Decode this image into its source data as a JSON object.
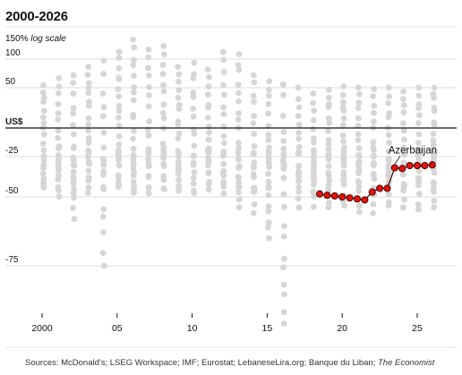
{
  "title": "2000-2026",
  "scale_note_value": "150%",
  "scale_note_label": "log scale",
  "footer_sources": "Sources: McDonald's; LSEG Workspace; IMF; Eurostat; LebaneseLira.org; Banque du Liban;",
  "footer_publisher": "The Economist",
  "colors": {
    "background_dots": "#d6d6d6",
    "highlight_fill": "#e3120b",
    "highlight_stroke": "#3a0000",
    "baseline": "#121212",
    "gridline": "#dddddd"
  },
  "chart_data": {
    "type": "scatter",
    "title": "2000-2026",
    "y_scale": "log (1 + pct/100)",
    "y_ticks": [
      "100",
      "50",
      "US$",
      "-25",
      "-50",
      "-75"
    ],
    "y_tick_values": [
      100,
      50,
      0,
      -25,
      -50,
      -75
    ],
    "x_ticks": [
      "2000",
      "05",
      "10",
      "15",
      "20",
      "25"
    ],
    "x_tick_values": [
      2000,
      2005,
      2010,
      2015,
      2020,
      2025
    ],
    "xlim": [
      1999,
      2027
    ],
    "ylim": [
      -92,
      150
    ],
    "background_dot_range_by_year": [
      {
        "x": 2000.1,
        "min": -45,
        "max": 55
      },
      {
        "x": 2001.1,
        "min": -50,
        "max": 65
      },
      {
        "x": 2002.1,
        "min": -60,
        "max": 70
      },
      {
        "x": 2003.1,
        "min": -48,
        "max": 85
      },
      {
        "x": 2004.1,
        "min": -75,
        "max": 100
      },
      {
        "x": 2005.1,
        "min": -45,
        "max": 115
      },
      {
        "x": 2006.1,
        "min": -48,
        "max": 145
      },
      {
        "x": 2007.1,
        "min": -50,
        "max": 120
      },
      {
        "x": 2008.1,
        "min": -46,
        "max": 135
      },
      {
        "x": 2009.1,
        "min": -48,
        "max": 85
      },
      {
        "x": 2010.1,
        "min": -48,
        "max": 95
      },
      {
        "x": 2011.1,
        "min": -47,
        "max": 80
      },
      {
        "x": 2012.1,
        "min": -50,
        "max": 115
      },
      {
        "x": 2013.1,
        "min": -55,
        "max": 110
      },
      {
        "x": 2014.1,
        "min": -58,
        "max": 70
      },
      {
        "x": 2015.1,
        "min": -67,
        "max": 60
      },
      {
        "x": 2016.1,
        "min": -86,
        "max": 55
      },
      {
        "x": 2017.1,
        "min": -55,
        "max": 50
      },
      {
        "x": 2018.1,
        "min": -55,
        "max": 45
      },
      {
        "x": 2019.1,
        "min": -55,
        "max": 48
      },
      {
        "x": 2020.1,
        "min": -55,
        "max": 52
      },
      {
        "x": 2021.1,
        "min": -57,
        "max": 50
      },
      {
        "x": 2022.1,
        "min": -58,
        "max": 48
      },
      {
        "x": 2023.1,
        "min": -55,
        "max": 50
      },
      {
        "x": 2024.1,
        "min": -55,
        "max": 48
      },
      {
        "x": 2025.1,
        "min": -56,
        "max": 50
      },
      {
        "x": 2026.1,
        "min": -55,
        "max": 52
      }
    ],
    "series": [
      {
        "name": "Azerbaijan",
        "x": [
          2018.5,
          2019.0,
          2019.5,
          2020.0,
          2020.5,
          2021.0,
          2021.5,
          2022.0,
          2022.5,
          2023.0,
          2023.5,
          2024.0,
          2024.5,
          2025.0,
          2025.5,
          2026.0
        ],
        "y": [
          -48.5,
          -49.2,
          -49.5,
          -50.0,
          -50.5,
          -51.0,
          -51.5,
          -47.5,
          -45.5,
          -45.5,
          -33.0,
          -33.5,
          -31.5,
          -31.5,
          -31.5,
          -31.0
        ]
      }
    ]
  }
}
